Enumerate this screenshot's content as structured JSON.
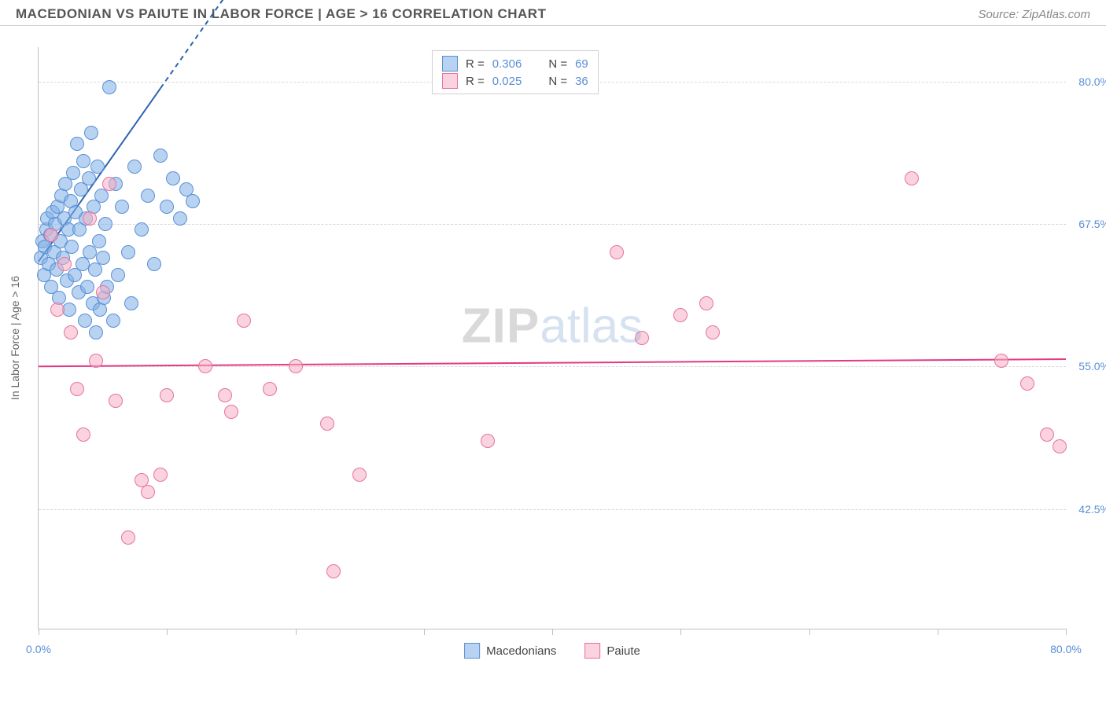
{
  "header": {
    "title": "MACEDONIAN VS PAIUTE IN LABOR FORCE | AGE > 16 CORRELATION CHART",
    "source": "Source: ZipAtlas.com"
  },
  "chart": {
    "type": "scatter",
    "ylabel": "In Labor Force | Age > 16",
    "xlim": [
      0,
      80
    ],
    "ylim": [
      32,
      83
    ],
    "background_color": "#ffffff",
    "grid_color": "#d8d8d8",
    "axis_color": "#c0c0c0",
    "tick_label_color": "#5a8fd6",
    "tick_fontsize": 14,
    "label_fontsize": 14,
    "ygrid_values": [
      42.5,
      55.0,
      67.5,
      80.0
    ],
    "ygrid_labels": [
      "42.5%",
      "55.0%",
      "67.5%",
      "80.0%"
    ],
    "xtick_values": [
      0,
      10,
      20,
      30,
      40,
      50,
      60,
      70,
      80
    ],
    "x_axis_labels": [
      {
        "value": 0,
        "text": "0.0%"
      },
      {
        "value": 80,
        "text": "80.0%"
      }
    ],
    "marker_radius": 8,
    "marker_stroke_width": 1.5,
    "series": [
      {
        "name": "Macedonians",
        "fill_color": "rgba(125,175,230,0.55)",
        "stroke_color": "#5a8fd6",
        "r_value": "0.306",
        "n_value": "69",
        "trend": {
          "slope": 1.6,
          "intercept": 64.2,
          "solid_xmax": 9.5,
          "dash_xmax": 23,
          "color": "#2f63b0",
          "width": 2
        },
        "points": [
          [
            0.2,
            64.5
          ],
          [
            0.3,
            66.0
          ],
          [
            0.4,
            63.0
          ],
          [
            0.5,
            65.5
          ],
          [
            0.6,
            67.0
          ],
          [
            0.7,
            68.0
          ],
          [
            0.8,
            64.0
          ],
          [
            0.9,
            66.5
          ],
          [
            1.0,
            62.0
          ],
          [
            1.1,
            68.5
          ],
          [
            1.2,
            65.0
          ],
          [
            1.3,
            67.5
          ],
          [
            1.4,
            63.5
          ],
          [
            1.5,
            69.0
          ],
          [
            1.6,
            61.0
          ],
          [
            1.7,
            66.0
          ],
          [
            1.8,
            70.0
          ],
          [
            1.9,
            64.5
          ],
          [
            2.0,
            68.0
          ],
          [
            2.1,
            71.0
          ],
          [
            2.2,
            62.5
          ],
          [
            2.3,
            67.0
          ],
          [
            2.4,
            60.0
          ],
          [
            2.5,
            69.5
          ],
          [
            2.6,
            65.5
          ],
          [
            2.7,
            72.0
          ],
          [
            2.8,
            63.0
          ],
          [
            2.9,
            68.5
          ],
          [
            3.0,
            74.5
          ],
          [
            3.1,
            61.5
          ],
          [
            3.2,
            67.0
          ],
          [
            3.3,
            70.5
          ],
          [
            3.4,
            64.0
          ],
          [
            3.5,
            73.0
          ],
          [
            3.6,
            59.0
          ],
          [
            3.7,
            68.0
          ],
          [
            3.8,
            62.0
          ],
          [
            3.9,
            71.5
          ],
          [
            4.0,
            65.0
          ],
          [
            4.1,
            75.5
          ],
          [
            4.2,
            60.5
          ],
          [
            4.3,
            69.0
          ],
          [
            4.4,
            63.5
          ],
          [
            4.5,
            58.0
          ],
          [
            4.6,
            72.5
          ],
          [
            4.7,
            66.0
          ],
          [
            4.8,
            60.0
          ],
          [
            4.9,
            70.0
          ],
          [
            5.0,
            64.5
          ],
          [
            5.1,
            61.0
          ],
          [
            5.2,
            67.5
          ],
          [
            5.3,
            62.0
          ],
          [
            5.5,
            79.5
          ],
          [
            5.8,
            59.0
          ],
          [
            6.0,
            71.0
          ],
          [
            6.2,
            63.0
          ],
          [
            6.5,
            69.0
          ],
          [
            7.0,
            65.0
          ],
          [
            7.2,
            60.5
          ],
          [
            7.5,
            72.5
          ],
          [
            8.0,
            67.0
          ],
          [
            8.5,
            70.0
          ],
          [
            9.0,
            64.0
          ],
          [
            9.5,
            73.5
          ],
          [
            10.0,
            69.0
          ],
          [
            10.5,
            71.5
          ],
          [
            11.0,
            68.0
          ],
          [
            11.5,
            70.5
          ],
          [
            12.0,
            69.5
          ]
        ]
      },
      {
        "name": "Paiute",
        "fill_color": "rgba(245,175,195,0.55)",
        "stroke_color": "#e573a0",
        "r_value": "0.025",
        "n_value": "36",
        "trend": {
          "slope": 0.008,
          "intercept": 55.0,
          "solid_xmax": 80,
          "dash_xmax": 80,
          "color": "#e33a82",
          "width": 2
        },
        "points": [
          [
            1.0,
            66.5
          ],
          [
            1.5,
            60.0
          ],
          [
            2.0,
            64.0
          ],
          [
            2.5,
            58.0
          ],
          [
            3.0,
            53.0
          ],
          [
            3.5,
            49.0
          ],
          [
            4.0,
            68.0
          ],
          [
            4.5,
            55.5
          ],
          [
            5.0,
            61.5
          ],
          [
            5.5,
            71.0
          ],
          [
            6.0,
            52.0
          ],
          [
            7.0,
            40.0
          ],
          [
            8.0,
            45.0
          ],
          [
            8.5,
            44.0
          ],
          [
            9.5,
            45.5
          ],
          [
            10.0,
            52.5
          ],
          [
            13.0,
            55.0
          ],
          [
            14.5,
            52.5
          ],
          [
            15.0,
            51.0
          ],
          [
            16.0,
            59.0
          ],
          [
            18.0,
            53.0
          ],
          [
            20.0,
            55.0
          ],
          [
            22.5,
            50.0
          ],
          [
            23.0,
            37.0
          ],
          [
            25.0,
            45.5
          ],
          [
            35.0,
            48.5
          ],
          [
            45.0,
            65.0
          ],
          [
            47.0,
            57.5
          ],
          [
            50.0,
            59.5
          ],
          [
            52.0,
            60.5
          ],
          [
            52.5,
            58.0
          ],
          [
            68.0,
            71.5
          ],
          [
            75.0,
            55.5
          ],
          [
            77.0,
            53.5
          ],
          [
            78.5,
            49.0
          ],
          [
            79.5,
            48.0
          ]
        ]
      }
    ],
    "legend_top": {
      "r_label": "R =",
      "n_label": "N ="
    },
    "watermark": {
      "part1": "ZIP",
      "part2": "atlas"
    }
  }
}
